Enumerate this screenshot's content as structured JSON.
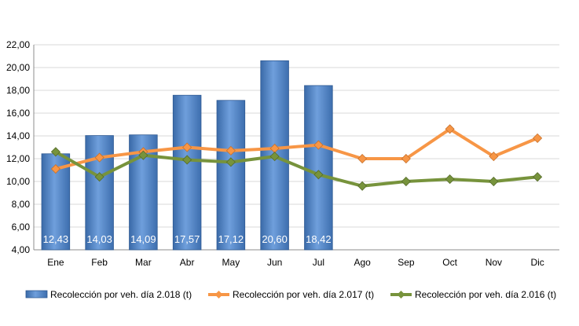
{
  "chart_data": {
    "type": "bar",
    "categories": [
      "Ene",
      "Feb",
      "Mar",
      "Abr",
      "May",
      "Jun",
      "Jul",
      "Ago",
      "Sep",
      "Oct",
      "Nov",
      "Dic"
    ],
    "ylim": [
      4,
      22
    ],
    "yticks": [
      "4,00",
      "6,00",
      "8,00",
      "10,00",
      "12,00",
      "14,00",
      "16,00",
      "18,00",
      "20,00",
      "22,00"
    ],
    "grid": true,
    "legend_position": "bottom",
    "series": [
      {
        "name": "Recolección por veh. día 2.018 (t)",
        "type": "bar",
        "color": "#4F81BD",
        "values": [
          12.43,
          14.03,
          14.09,
          17.57,
          17.12,
          20.6,
          18.42,
          null,
          null,
          null,
          null,
          null
        ],
        "data_labels": [
          "12,43",
          "14,03",
          "14,09",
          "17,57",
          "17,12",
          "20,60",
          "18,42"
        ]
      },
      {
        "name": "Recolección por veh. día 2.017 (t)",
        "type": "line",
        "color": "#F79646",
        "values": [
          11.1,
          12.1,
          12.6,
          13.0,
          12.7,
          12.9,
          13.2,
          12.0,
          12.0,
          14.6,
          12.2,
          13.8
        ]
      },
      {
        "name": "Recolección por veh. día 2.016 (t)",
        "type": "line",
        "color": "#77933C",
        "values": [
          12.6,
          10.4,
          12.3,
          11.9,
          11.7,
          12.2,
          10.6,
          9.6,
          10.0,
          10.2,
          10.0,
          10.4
        ]
      }
    ]
  }
}
